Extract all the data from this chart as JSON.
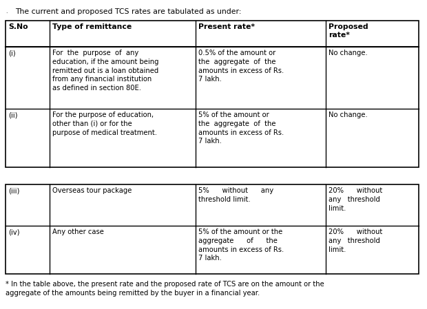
{
  "intro_text": "The current and proposed TCS rates are tabulated as under:",
  "headers": [
    "S.No",
    "Type of remittance",
    "Present rate*",
    "Proposed\nrate*"
  ],
  "row_i_sno": "(i)",
  "row_i_type": "For  the  purpose  of  any\neducation, if the amount being\nremitted out is a loan obtained\nfrom any financial institution\nas defined in section 80E.",
  "row_i_present": "0.5% of the amount or\nthe  aggregate  of  the\namounts in excess of Rs.\n7 lakh.",
  "row_i_proposed": "No change.",
  "row_ii_sno": "(ii)",
  "row_ii_type": "For the purpose of education,\nother than (i) or for the\npurpose of medical treatment.",
  "row_ii_present": "5% of the amount or\nthe  aggregate  of  the\namounts in excess of Rs.\n7 lakh.",
  "row_ii_proposed": "No change.",
  "row_iii_sno": "(iii)",
  "row_iii_type": "Overseas tour package",
  "row_iii_present": "5%      without      any\nthreshold limit.",
  "row_iii_proposed": "20%      without\nany   threshold\nlimit.",
  "row_iv_sno": "(iv)",
  "row_iv_type": "Any other case",
  "row_iv_present": "5% of the amount or the\naggregate      of      the\namounts in excess of Rs.\n7 lakh.",
  "row_iv_proposed": "20%      without\nany   threshold\nlimit.",
  "footnote": "* In the table above, the present rate and the proposed rate of TCS are on the amount or the\naggregate of the amounts being remitted by the buyer in a financial year.",
  "bg_color": "#ffffff",
  "text_color": "#000000",
  "border_color": "#000000",
  "font_size": 7.2,
  "header_font_size": 7.8,
  "intro_font_size": 7.8,
  "footnote_font_size": 7.2
}
